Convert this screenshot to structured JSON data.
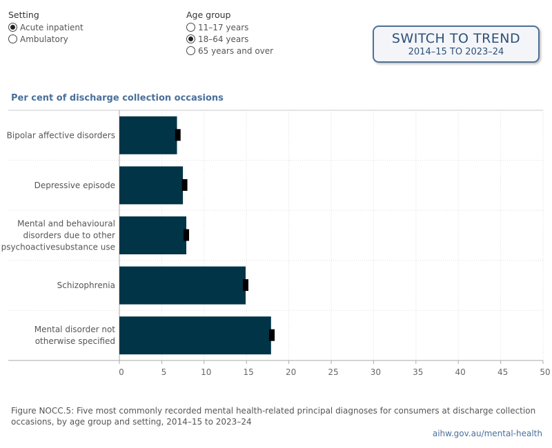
{
  "filters": {
    "setting": {
      "title": "Setting",
      "options": [
        {
          "label": "Acute inpatient",
          "checked": true
        },
        {
          "label": "Ambulatory",
          "checked": false
        }
      ]
    },
    "age_group": {
      "title": "Age group",
      "options": [
        {
          "label": "11–17 years",
          "checked": false
        },
        {
          "label": "18–64 years",
          "checked": true
        },
        {
          "label": "65 years and over",
          "checked": false
        }
      ]
    }
  },
  "switch_button": {
    "line1": "SWITCH TO TREND",
    "line2": "2014–15 TO 2023–24"
  },
  "chart_title": "Per cent of discharge collection occasions",
  "chart_data": {
    "type": "bar",
    "orientation": "horizontal",
    "categories": [
      "Bipolar affective disorders",
      "Depressive episode",
      "Mental and behavioural disorders due to other psychoactivesubstance use",
      "Schizophrenia",
      "Mental disorder not otherwise specified"
    ],
    "category_lines": [
      [
        "Bipolar affective disorders"
      ],
      [
        "Depressive episode"
      ],
      [
        "Mental and behavioural",
        "disorders due to other",
        "psychoactivesubstance use"
      ],
      [
        "Schizophrenia"
      ],
      [
        "Mental disorder not",
        "otherwise specified"
      ]
    ],
    "values": [
      6.8,
      7.5,
      7.9,
      14.9,
      17.9
    ],
    "markers": [
      6.9,
      7.7,
      7.9,
      14.9,
      18.0
    ],
    "xlim": [
      0,
      50
    ],
    "xticks": [
      0,
      5,
      10,
      15,
      20,
      25,
      30,
      35,
      40,
      45,
      50
    ],
    "bar_color": "#023447",
    "marker_color": "#000000",
    "grid": "dotted vertical"
  },
  "caption": "Figure NOCC.5: Five most commonly recorded mental health-related principal diagnoses for consumers at discharge collection occasions, by age group and setting, 2014–15 to 2023–24",
  "source": "aihw.gov.au/mental-health"
}
